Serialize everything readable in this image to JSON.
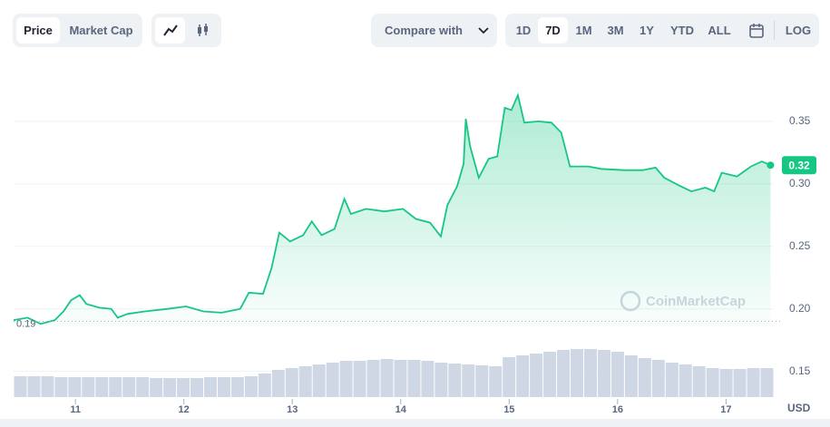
{
  "toolbar": {
    "tabs": [
      "Price",
      "Market Cap"
    ],
    "compare": "Compare with",
    "ranges": [
      "1D",
      "7D",
      "1M",
      "3M",
      "1Y",
      "YTD",
      "ALL"
    ],
    "log": "LOG"
  },
  "chart_data": {
    "type": "line",
    "color": "#16c784",
    "x": [
      10.43,
      10.56,
      10.68,
      10.81,
      10.89,
      10.96,
      11.04,
      11.1,
      11.22,
      11.33,
      11.39,
      11.48,
      11.64,
      11.85,
      12.02,
      12.18,
      12.35,
      12.52,
      12.6,
      12.73,
      12.81,
      12.88,
      12.98,
      13.1,
      13.18,
      13.27,
      13.39,
      13.48,
      13.54,
      13.68,
      13.85,
      14.02,
      14.14,
      14.27,
      14.37,
      14.43,
      14.52,
      14.58,
      14.6,
      14.64,
      14.72,
      14.81,
      14.89,
      14.96,
      15.02,
      15.08,
      15.14,
      15.27,
      15.39,
      15.48,
      15.56,
      15.73,
      15.85,
      16.06,
      16.23,
      16.35,
      16.43,
      16.56,
      16.68,
      16.81,
      16.89,
      16.96,
      17.1,
      17.23,
      17.33,
      17.41
    ],
    "values": [
      0.191,
      0.193,
      0.188,
      0.191,
      0.198,
      0.207,
      0.211,
      0.204,
      0.201,
      0.2,
      0.193,
      0.196,
      0.198,
      0.2,
      0.202,
      0.198,
      0.197,
      0.2,
      0.213,
      0.212,
      0.233,
      0.261,
      0.254,
      0.259,
      0.27,
      0.259,
      0.264,
      0.288,
      0.276,
      0.28,
      0.278,
      0.28,
      0.272,
      0.269,
      0.258,
      0.283,
      0.298,
      0.316,
      0.352,
      0.33,
      0.305,
      0.32,
      0.322,
      0.361,
      0.359,
      0.371,
      0.349,
      0.35,
      0.349,
      0.341,
      0.314,
      0.314,
      0.312,
      0.311,
      0.311,
      0.313,
      0.305,
      0.299,
      0.294,
      0.297,
      0.294,
      0.309,
      0.306,
      0.314,
      0.318,
      0.315
    ],
    "xlim": [
      10.43,
      17.44
    ],
    "xticks": [
      11,
      12,
      13,
      14,
      15,
      16,
      17
    ],
    "ylim": [
      0.128,
      0.4
    ],
    "yticks": [
      0.15,
      {
        "value": 0.2,
        "label": "0.20"
      },
      0.25,
      {
        "value": 0.3,
        "label": "0.30"
      },
      0.35
    ],
    "grid": true,
    "y_unit": "USD",
    "reference_line": 0.19,
    "last_price": {
      "value": 0.315,
      "label": "0.32"
    },
    "watermark": "CoinMarketCap",
    "volume": {
      "color": "#cfd6e4",
      "ylim": [
        0,
        75
      ],
      "values": [
        23,
        23,
        23,
        22,
        22,
        22,
        22,
        22,
        22,
        22,
        21,
        21,
        21,
        21,
        22,
        22,
        22,
        23,
        26,
        30,
        32,
        34,
        36,
        38,
        40,
        40,
        41,
        42,
        41,
        41,
        40,
        38,
        37,
        36,
        35,
        34,
        44,
        46,
        48,
        50,
        52,
        53,
        53,
        52,
        50,
        46,
        43,
        41,
        38,
        36,
        34,
        32,
        31,
        31,
        32,
        32
      ]
    }
  }
}
